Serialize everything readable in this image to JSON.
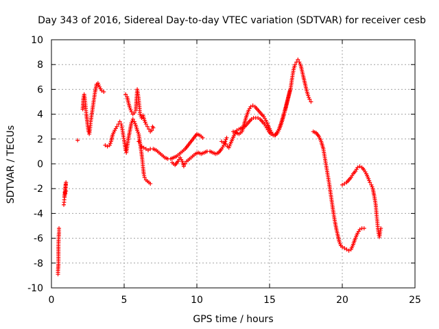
{
  "chart_data": {
    "type": "scatter",
    "title": "Day 343 of 2016, Sidereal Day-to-day VTEC variation (SDTVAR) for receiver cesb",
    "xlabel": "GPS time / hours",
    "ylabel": "SDTVAR / TECUs",
    "xlim": [
      0,
      25
    ],
    "ylim": [
      -10,
      10
    ],
    "xticks": [
      0,
      5,
      10,
      15,
      20,
      25
    ],
    "yticks": [
      -10,
      -8,
      -6,
      -4,
      -2,
      0,
      2,
      4,
      6,
      8,
      10
    ],
    "grid": true,
    "marker": "+",
    "color": "#ff0000",
    "series": [
      {
        "name": "s1",
        "points": [
          [
            0.45,
            -8.9
          ],
          [
            0.45,
            -8.6
          ],
          [
            0.48,
            -8.1
          ],
          [
            0.48,
            -7.4
          ],
          [
            0.48,
            -6.6
          ],
          [
            0.5,
            -5.9
          ],
          [
            0.52,
            -5.5
          ],
          [
            0.52,
            -5.2
          ]
        ]
      },
      {
        "name": "s2",
        "points": [
          [
            0.85,
            -3.3
          ],
          [
            0.87,
            -3.1
          ],
          [
            0.88,
            -2.9
          ],
          [
            0.9,
            -2.7
          ],
          [
            0.92,
            -2.5
          ],
          [
            0.93,
            -2.3
          ],
          [
            0.95,
            -2.1
          ],
          [
            0.97,
            -1.9
          ],
          [
            0.98,
            -1.7
          ],
          [
            1.0,
            -1.5
          ],
          [
            0.9,
            -2.6
          ],
          [
            0.95,
            -2.4
          ],
          [
            1.0,
            -2.2
          ]
        ]
      },
      {
        "name": "s3",
        "points": [
          [
            1.8,
            1.9
          ],
          [
            2.15,
            4.4
          ],
          [
            2.2,
            5.3
          ],
          [
            2.25,
            5.6
          ],
          [
            2.3,
            5.2
          ],
          [
            2.35,
            4.6
          ],
          [
            2.4,
            4.0
          ],
          [
            2.45,
            3.5
          ],
          [
            2.5,
            3.0
          ],
          [
            2.55,
            2.6
          ],
          [
            2.6,
            2.4
          ],
          [
            2.65,
            2.8
          ],
          [
            2.7,
            3.4
          ],
          [
            2.8,
            4.2
          ],
          [
            2.9,
            5.0
          ],
          [
            3.0,
            5.8
          ],
          [
            3.1,
            6.4
          ],
          [
            3.2,
            6.5
          ],
          [
            3.3,
            6.2
          ],
          [
            3.45,
            5.9
          ],
          [
            3.6,
            5.8
          ]
        ]
      },
      {
        "name": "s4",
        "points": [
          [
            3.7,
            1.5
          ],
          [
            3.85,
            1.4
          ],
          [
            4.0,
            1.5
          ],
          [
            4.1,
            1.8
          ],
          [
            4.2,
            2.3
          ],
          [
            4.35,
            2.7
          ],
          [
            4.5,
            3.0
          ],
          [
            4.6,
            3.2
          ],
          [
            4.7,
            3.4
          ],
          [
            4.8,
            3.2
          ],
          [
            4.85,
            2.9
          ],
          [
            4.9,
            2.6
          ],
          [
            4.95,
            2.2
          ],
          [
            5.0,
            1.9
          ],
          [
            5.05,
            1.5
          ],
          [
            5.1,
            1.1
          ],
          [
            5.15,
            0.9
          ],
          [
            5.2,
            1.3
          ],
          [
            5.25,
            1.7
          ],
          [
            5.3,
            2.1
          ],
          [
            5.4,
            2.7
          ],
          [
            5.5,
            3.3
          ],
          [
            5.6,
            3.6
          ],
          [
            5.7,
            3.4
          ],
          [
            5.8,
            3.1
          ],
          [
            5.9,
            2.7
          ],
          [
            6.0,
            2.4
          ],
          [
            6.05,
            2.0
          ],
          [
            6.1,
            1.6
          ],
          [
            6.15,
            1.2
          ],
          [
            6.2,
            0.8
          ],
          [
            6.25,
            0.3
          ],
          [
            6.3,
            -0.3
          ],
          [
            6.35,
            -0.8
          ],
          [
            6.4,
            -1.1
          ],
          [
            6.5,
            -1.3
          ],
          [
            6.6,
            -1.4
          ],
          [
            6.7,
            -1.5
          ],
          [
            6.8,
            -1.6
          ]
        ]
      },
      {
        "name": "s5",
        "points": [
          [
            5.1,
            5.6
          ],
          [
            5.2,
            5.4
          ],
          [
            5.3,
            4.9
          ],
          [
            5.4,
            4.5
          ],
          [
            5.5,
            4.2
          ],
          [
            5.6,
            4.0
          ],
          [
            5.7,
            4.1
          ],
          [
            5.8,
            4.3
          ],
          [
            5.85,
            5.2
          ],
          [
            5.9,
            6.0
          ],
          [
            5.95,
            5.6
          ],
          [
            6.0,
            5.2
          ],
          [
            6.05,
            4.6
          ],
          [
            6.1,
            4.0
          ],
          [
            6.2,
            3.7
          ],
          [
            6.3,
            3.9
          ],
          [
            6.4,
            3.5
          ],
          [
            6.5,
            3.2
          ],
          [
            6.6,
            3.0
          ],
          [
            6.7,
            2.8
          ],
          [
            6.8,
            2.6
          ],
          [
            6.9,
            2.7
          ],
          [
            7.0,
            2.9
          ],
          [
            6.95,
            3.0
          ]
        ]
      },
      {
        "name": "s6",
        "points": [
          [
            6.0,
            1.8
          ],
          [
            6.1,
            1.6
          ],
          [
            6.2,
            1.4
          ],
          [
            6.35,
            1.3
          ],
          [
            6.5,
            1.2
          ],
          [
            6.65,
            1.1
          ],
          [
            6.8,
            1.2
          ],
          [
            7.0,
            1.2
          ],
          [
            7.2,
            1.1
          ],
          [
            7.4,
            0.9
          ],
          [
            7.6,
            0.7
          ],
          [
            7.8,
            0.5
          ],
          [
            8.0,
            0.4
          ],
          [
            8.2,
            0.4
          ],
          [
            8.4,
            0.5
          ],
          [
            8.6,
            0.6
          ],
          [
            8.8,
            0.8
          ],
          [
            9.0,
            1.0
          ],
          [
            9.2,
            1.2
          ],
          [
            9.4,
            1.5
          ],
          [
            9.6,
            1.8
          ],
          [
            9.8,
            2.1
          ],
          [
            10.0,
            2.4
          ],
          [
            10.2,
            2.3
          ],
          [
            10.4,
            2.1
          ]
        ]
      },
      {
        "name": "s7",
        "points": [
          [
            8.3,
            0.1
          ],
          [
            8.5,
            -0.1
          ],
          [
            8.7,
            0.2
          ],
          [
            8.85,
            0.5
          ],
          [
            9.0,
            0.2
          ],
          [
            9.1,
            -0.2
          ],
          [
            9.2,
            0.0
          ],
          [
            9.3,
            0.2
          ],
          [
            9.5,
            0.4
          ],
          [
            9.7,
            0.6
          ],
          [
            9.9,
            0.8
          ],
          [
            10.1,
            0.9
          ],
          [
            10.3,
            0.8
          ],
          [
            10.5,
            0.9
          ],
          [
            10.7,
            1.0
          ],
          [
            10.9,
            1.0
          ],
          [
            11.1,
            0.9
          ],
          [
            11.3,
            0.8
          ],
          [
            11.5,
            0.9
          ],
          [
            11.7,
            1.2
          ],
          [
            11.85,
            1.5
          ],
          [
            11.95,
            1.8
          ],
          [
            12.05,
            2.1
          ]
        ]
      },
      {
        "name": "s8",
        "points": [
          [
            11.7,
            1.8
          ],
          [
            11.85,
            1.7
          ],
          [
            12.0,
            1.6
          ],
          [
            12.1,
            1.4
          ],
          [
            12.2,
            1.3
          ],
          [
            12.3,
            1.6
          ],
          [
            12.45,
            2.0
          ],
          [
            12.6,
            2.4
          ],
          [
            12.75,
            2.7
          ],
          [
            12.9,
            2.8
          ],
          [
            13.1,
            2.9
          ],
          [
            13.3,
            3.0
          ],
          [
            13.45,
            3.2
          ],
          [
            13.6,
            3.4
          ],
          [
            13.75,
            3.6
          ],
          [
            13.9,
            3.7
          ],
          [
            14.05,
            3.7
          ],
          [
            14.2,
            3.7
          ],
          [
            14.35,
            3.6
          ],
          [
            14.5,
            3.4
          ],
          [
            14.65,
            3.2
          ],
          [
            14.8,
            2.9
          ],
          [
            14.95,
            2.6
          ],
          [
            15.1,
            2.4
          ],
          [
            15.25,
            2.3
          ],
          [
            15.4,
            2.3
          ],
          [
            15.55,
            2.5
          ],
          [
            15.7,
            2.9
          ],
          [
            15.85,
            3.4
          ],
          [
            16.0,
            4.0
          ],
          [
            16.15,
            4.7
          ],
          [
            16.3,
            5.4
          ],
          [
            16.45,
            6.1
          ],
          [
            16.55,
            6.9
          ],
          [
            16.65,
            7.6
          ],
          [
            16.75,
            8.0
          ],
          [
            16.85,
            8.2
          ],
          [
            16.95,
            8.4
          ],
          [
            17.05,
            8.2
          ],
          [
            17.15,
            7.9
          ],
          [
            17.25,
            7.4
          ],
          [
            17.35,
            6.9
          ],
          [
            17.45,
            6.4
          ],
          [
            17.55,
            5.9
          ],
          [
            17.65,
            5.5
          ],
          [
            17.75,
            5.2
          ],
          [
            17.85,
            5.0
          ]
        ]
      },
      {
        "name": "s9",
        "points": [
          [
            12.5,
            2.6
          ],
          [
            12.7,
            2.5
          ],
          [
            12.9,
            2.4
          ],
          [
            13.1,
            2.6
          ],
          [
            13.25,
            3.2
          ],
          [
            13.4,
            3.8
          ],
          [
            13.55,
            4.3
          ],
          [
            13.7,
            4.6
          ],
          [
            13.85,
            4.7
          ],
          [
            14.0,
            4.6
          ],
          [
            14.15,
            4.4
          ],
          [
            14.3,
            4.2
          ],
          [
            14.45,
            4.0
          ],
          [
            14.6,
            3.8
          ],
          [
            14.75,
            3.5
          ],
          [
            14.9,
            3.1
          ],
          [
            15.05,
            2.7
          ],
          [
            15.2,
            2.4
          ],
          [
            15.35,
            2.3
          ],
          [
            15.5,
            2.5
          ],
          [
            15.65,
            2.8
          ],
          [
            15.8,
            3.3
          ],
          [
            15.95,
            3.9
          ],
          [
            16.1,
            4.5
          ],
          [
            16.25,
            5.2
          ],
          [
            16.4,
            5.9
          ]
        ]
      },
      {
        "name": "s10",
        "points": [
          [
            18.0,
            2.6
          ],
          [
            18.2,
            2.5
          ],
          [
            18.4,
            2.2
          ],
          [
            18.55,
            1.8
          ],
          [
            18.7,
            1.2
          ],
          [
            18.8,
            0.5
          ],
          [
            18.9,
            -0.2
          ],
          [
            19.0,
            -0.9
          ],
          [
            19.1,
            -1.6
          ],
          [
            19.2,
            -2.4
          ],
          [
            19.3,
            -3.2
          ],
          [
            19.4,
            -4.0
          ],
          [
            19.5,
            -4.7
          ],
          [
            19.6,
            -5.3
          ],
          [
            19.7,
            -5.8
          ],
          [
            19.8,
            -6.3
          ],
          [
            19.9,
            -6.6
          ],
          [
            20.0,
            -6.7
          ],
          [
            20.15,
            -6.8
          ],
          [
            20.3,
            -6.9
          ],
          [
            20.45,
            -7.0
          ],
          [
            20.6,
            -6.9
          ],
          [
            20.75,
            -6.5
          ],
          [
            20.9,
            -6.0
          ],
          [
            21.05,
            -5.6
          ],
          [
            21.2,
            -5.3
          ],
          [
            21.35,
            -5.2
          ],
          [
            21.5,
            -5.2
          ]
        ]
      },
      {
        "name": "s11",
        "points": [
          [
            20.0,
            -1.7
          ],
          [
            20.15,
            -1.6
          ],
          [
            20.3,
            -1.5
          ],
          [
            20.45,
            -1.3
          ],
          [
            20.6,
            -1.1
          ],
          [
            20.75,
            -0.8
          ],
          [
            20.9,
            -0.6
          ],
          [
            21.05,
            -0.3
          ],
          [
            21.2,
            -0.2
          ],
          [
            21.35,
            -0.3
          ],
          [
            21.5,
            -0.5
          ],
          [
            21.65,
            -0.8
          ],
          [
            21.8,
            -1.2
          ],
          [
            21.9,
            -1.5
          ],
          [
            22.0,
            -1.7
          ],
          [
            22.1,
            -2.0
          ],
          [
            22.2,
            -2.6
          ],
          [
            22.3,
            -3.3
          ],
          [
            22.35,
            -4.0
          ],
          [
            22.4,
            -4.6
          ],
          [
            22.45,
            -5.2
          ],
          [
            22.5,
            -5.6
          ],
          [
            22.55,
            -5.9
          ],
          [
            22.6,
            -5.5
          ],
          [
            22.65,
            -5.2
          ]
        ]
      }
    ]
  }
}
